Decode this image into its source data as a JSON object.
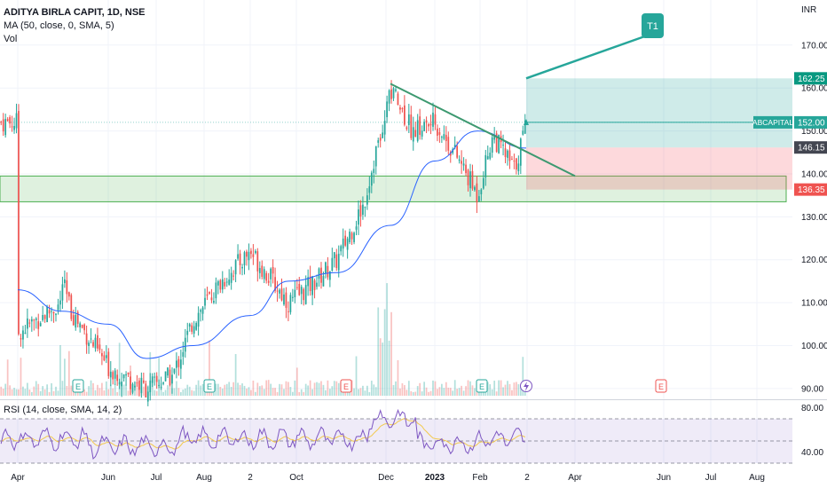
{
  "header": {
    "symbol_line": "ADITYA BIRLA CAPIT, 1D, NSE",
    "ma_line": "MA (50, close, 0, SMA, 5)",
    "vol_line": "Vol"
  },
  "rsi_header": "RSI (14, close, SMA, 14, 2)",
  "currency_label": "INR",
  "price_axis": {
    "ticks": [
      "170.00",
      "160.00",
      "150.00",
      "140.00",
      "130.00",
      "120.00",
      "110.00",
      "100.00",
      "90.00"
    ],
    "range": [
      87.5,
      180.5
    ]
  },
  "rsi_axis": {
    "ticks": [
      "80.00",
      "40.00"
    ],
    "range": [
      30,
      86
    ]
  },
  "time_axis": [
    "Apr",
    "Jun",
    "Jul",
    "Aug",
    "2",
    "Oct",
    "Dec",
    "2023",
    "Feb",
    "2",
    "Apr",
    "Jun",
    "Jul",
    "Aug"
  ],
  "price_labels": {
    "target": "162.25",
    "ticker_name": "ABCAPITAL",
    "current": "152.00",
    "entry": "146.15",
    "stop": "136.35"
  },
  "annotation": {
    "text": "T1"
  },
  "earnings_marker": "E",
  "colors": {
    "up": "#26a69a",
    "down": "#ef5350",
    "ma": "#2962ff",
    "rsi": "#7e57c2",
    "rsi_ma": "#f2c94c",
    "trendline": "#3d9970",
    "support_zone": "#4caf50",
    "target_zone": "#26a69a",
    "stop_zone": "#f7525f"
  },
  "chart_data": {
    "type": "candlestick",
    "symbol": "ADITYA BIRLA CAPIT",
    "interval": "1D",
    "exchange": "NSE",
    "close_path": [
      {
        "x": "Apr",
        "y": 103
      },
      {
        "x": "May",
        "y": 110
      },
      {
        "x": "mid-May",
        "y": 122
      },
      {
        "x": "late-May",
        "y": 108
      },
      {
        "x": "Jun",
        "y": 95
      },
      {
        "x": "Jul",
        "y": 90
      },
      {
        "x": "mid-Jul",
        "y": 93
      },
      {
        "x": "Aug",
        "y": 106
      },
      {
        "x": "mid-Aug",
        "y": 115
      },
      {
        "x": "Sep",
        "y": 122
      },
      {
        "x": "Oct",
        "y": 110
      },
      {
        "x": "mid-Oct",
        "y": 114
      },
      {
        "x": "Nov",
        "y": 120
      },
      {
        "x": "late-Nov",
        "y": 133
      },
      {
        "x": "Dec",
        "y": 160
      },
      {
        "x": "mid-Dec",
        "y": 150
      },
      {
        "x": "2023",
        "y": 152
      },
      {
        "x": "mid-Jan",
        "y": 144
      },
      {
        "x": "Feb",
        "y": 135
      },
      {
        "x": "mid-Feb",
        "y": 149
      },
      {
        "x": "late-Feb",
        "y": 141
      },
      {
        "x": "Mar",
        "y": 152
      }
    ],
    "volume_spikes": [
      "Dec"
    ],
    "ma50_path": [
      {
        "x": "Apr",
        "y": 113
      },
      {
        "x": "May",
        "y": 108
      },
      {
        "x": "Jun",
        "y": 105
      },
      {
        "x": "Jul",
        "y": 97
      },
      {
        "x": "Aug",
        "y": 100
      },
      {
        "x": "Sep",
        "y": 107
      },
      {
        "x": "Oct",
        "y": 115
      },
      {
        "x": "Nov",
        "y": 117
      },
      {
        "x": "Dec",
        "y": 128
      },
      {
        "x": "2023",
        "y": 143
      },
      {
        "x": "Feb",
        "y": 150
      },
      {
        "x": "Mar",
        "y": 146
      }
    ],
    "trendline": {
      "from": {
        "x": "Dec",
        "y": 161
      },
      "to": {
        "x": "Apr",
        "y": 139.5
      }
    },
    "support_zone": [
      133.5,
      139.5
    ],
    "position": {
      "entry": 146.15,
      "target": 162.25,
      "stop": 136.35
    },
    "rsi": {
      "levels": [
        70,
        50,
        30
      ]
    }
  }
}
